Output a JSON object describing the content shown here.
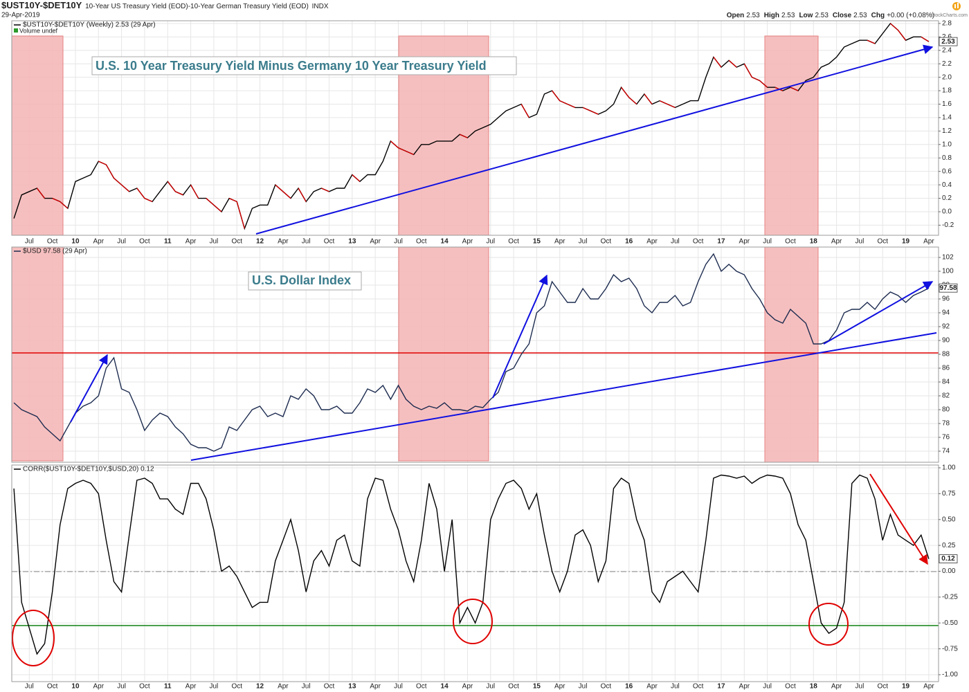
{
  "chart_data": [
    {
      "type": "line",
      "title": "$UST10Y-$DET10Y",
      "subtitle": "10-Year US Treasury Yield (EOD)-10-Year German Treasury Yield (EOD)",
      "exchange": "INDX",
      "date": "29-Apr-2019",
      "quote": [
        [
          "Open",
          2.53
        ],
        [
          "High",
          2.53
        ],
        [
          "Low",
          2.53
        ],
        [
          "Close",
          2.53
        ],
        [
          "Chg",
          "+0.00 (+0.08%)"
        ]
      ],
      "brand": "StockCharts.com",
      "annotation": "U.S. 10 Year Treasury Yield Minus Germany 10 Year Treasury Yield",
      "volume_note": "Volume undef",
      "xlim": [
        "2009-04",
        "2019-05"
      ],
      "xticks": [
        {
          "value": "2009-07",
          "label": "Jul"
        },
        {
          "value": "2009-10",
          "label": "Oct"
        },
        {
          "value": "2010-01",
          "label": "10"
        },
        {
          "value": "2010-04",
          "label": "Apr"
        },
        {
          "value": "2010-07",
          "label": "Jul"
        },
        {
          "value": "2010-10",
          "label": "Oct"
        },
        {
          "value": "2011-01",
          "label": "11"
        },
        {
          "value": "2011-04",
          "label": "Apr"
        },
        {
          "value": "2011-07",
          "label": "Jul"
        },
        {
          "value": "2011-10",
          "label": "Oct"
        },
        {
          "value": "2012-01",
          "label": "12"
        },
        {
          "value": "2012-04",
          "label": "Apr"
        },
        {
          "value": "2012-07",
          "label": "Jul"
        },
        {
          "value": "2012-10",
          "label": "Oct"
        },
        {
          "value": "2013-01",
          "label": "13"
        },
        {
          "value": "2013-04",
          "label": "Apr"
        },
        {
          "value": "2013-07",
          "label": "Jul"
        },
        {
          "value": "2013-10",
          "label": "Oct"
        },
        {
          "value": "2014-01",
          "label": "14"
        },
        {
          "value": "2014-04",
          "label": "Apr"
        },
        {
          "value": "2014-07",
          "label": "Jul"
        },
        {
          "value": "2014-10",
          "label": "Oct"
        },
        {
          "value": "2015-01",
          "label": "15"
        },
        {
          "value": "2015-04",
          "label": "Apr"
        },
        {
          "value": "2015-07",
          "label": "Jul"
        },
        {
          "value": "2015-10",
          "label": "Oct"
        },
        {
          "value": "2016-01",
          "label": "16"
        },
        {
          "value": "2016-04",
          "label": "Apr"
        },
        {
          "value": "2016-07",
          "label": "Jul"
        },
        {
          "value": "2016-10",
          "label": "Oct"
        },
        {
          "value": "2017-01",
          "label": "17"
        },
        {
          "value": "2017-04",
          "label": "Apr"
        },
        {
          "value": "2017-07",
          "label": "Jul"
        },
        {
          "value": "2017-10",
          "label": "Oct"
        },
        {
          "value": "2018-01",
          "label": "18"
        },
        {
          "value": "2018-04",
          "label": "Apr"
        },
        {
          "value": "2018-07",
          "label": "Jul"
        },
        {
          "value": "2018-10",
          "label": "Oct"
        },
        {
          "value": "2019-01",
          "label": "19"
        },
        {
          "value": "2019-04",
          "label": "Apr"
        }
      ],
      "x": [
        "2009-05",
        "2009-06",
        "2009-07",
        "2009-08",
        "2009-09",
        "2009-10",
        "2009-11",
        "2009-12",
        "2010-01",
        "2010-02",
        "2010-03",
        "2010-04",
        "2010-05",
        "2010-06",
        "2010-07",
        "2010-08",
        "2010-09",
        "2010-10",
        "2010-11",
        "2010-12",
        "2011-01",
        "2011-02",
        "2011-03",
        "2011-04",
        "2011-05",
        "2011-06",
        "2011-07",
        "2011-08",
        "2011-09",
        "2011-10",
        "2011-11",
        "2011-12",
        "2012-01",
        "2012-02",
        "2012-03",
        "2012-04",
        "2012-05",
        "2012-06",
        "2012-07",
        "2012-08",
        "2012-09",
        "2012-10",
        "2012-11",
        "2012-12",
        "2013-01",
        "2013-02",
        "2013-03",
        "2013-04",
        "2013-05",
        "2013-06",
        "2013-07",
        "2013-08",
        "2013-09",
        "2013-10",
        "2013-11",
        "2013-12",
        "2014-01",
        "2014-02",
        "2014-03",
        "2014-04",
        "2014-05",
        "2014-06",
        "2014-07",
        "2014-08",
        "2014-09",
        "2014-10",
        "2014-11",
        "2014-12",
        "2015-01",
        "2015-02",
        "2015-03",
        "2015-04",
        "2015-05",
        "2015-06",
        "2015-07",
        "2015-08",
        "2015-09",
        "2015-10",
        "2015-11",
        "2015-12",
        "2016-01",
        "2016-02",
        "2016-03",
        "2016-04",
        "2016-05",
        "2016-06",
        "2016-07",
        "2016-08",
        "2016-09",
        "2016-10",
        "2016-11",
        "2016-12",
        "2017-01",
        "2017-02",
        "2017-03",
        "2017-04",
        "2017-05",
        "2017-06",
        "2017-07",
        "2017-08",
        "2017-09",
        "2017-10",
        "2017-11",
        "2017-12",
        "2018-01",
        "2018-02",
        "2018-03",
        "2018-04",
        "2018-05",
        "2018-06",
        "2018-07",
        "2018-08",
        "2018-09",
        "2018-10",
        "2018-11",
        "2018-12",
        "2019-01",
        "2019-02",
        "2019-03",
        "2019-04"
      ],
      "ylim": [
        -0.35,
        2.84
      ],
      "yticks": [
        -0.2,
        {
          "value": 0,
          "label": "0.0"
        },
        0.2,
        0.4,
        0.6,
        0.8,
        {
          "value": 1,
          "label": "1.0"
        },
        1.2,
        1.4,
        1.6,
        1.8,
        {
          "value": 2,
          "label": "2.0"
        },
        2.2,
        2.4,
        2.6,
        2.8
      ],
      "grid": true,
      "series": [
        {
          "name": "$UST10Y-$DET10Y (Weekly) 2.53 (29 Apr)",
          "color": "#000000",
          "down_color": "#d00000",
          "values": [
            -0.1,
            0.25,
            0.3,
            0.35,
            0.2,
            0.2,
            0.15,
            0.05,
            0.45,
            0.5,
            0.55,
            0.75,
            0.7,
            0.5,
            0.4,
            0.3,
            0.35,
            0.2,
            0.15,
            0.3,
            0.45,
            0.3,
            0.25,
            0.4,
            0.2,
            0.2,
            0.1,
            0,
            0.2,
            0.15,
            -0.25,
            0.05,
            0.1,
            0.1,
            0.4,
            0.3,
            0.2,
            0.35,
            0.15,
            0.3,
            0.35,
            0.3,
            0.35,
            0.35,
            0.55,
            0.45,
            0.55,
            0.55,
            0.75,
            1.05,
            0.95,
            0.9,
            0.85,
            1,
            1,
            1.05,
            1.05,
            1.05,
            1.15,
            1.1,
            1.2,
            1.25,
            1.3,
            1.4,
            1.5,
            1.55,
            1.6,
            1.4,
            1.45,
            1.75,
            1.8,
            1.65,
            1.6,
            1.55,
            1.55,
            1.5,
            1.45,
            1.5,
            1.6,
            1.85,
            1.7,
            1.6,
            1.75,
            1.6,
            1.65,
            1.6,
            1.55,
            1.6,
            1.65,
            1.65,
            2,
            2.3,
            2.15,
            2.25,
            2.15,
            2.2,
            2,
            1.95,
            1.85,
            1.85,
            1.8,
            1.85,
            1.8,
            1.95,
            2,
            2.15,
            2.2,
            2.3,
            2.45,
            2.5,
            2.55,
            2.55,
            2.5,
            2.65,
            2.8,
            2.7,
            2.55,
            2.6,
            2.6,
            2.53
          ]
        }
      ]
    },
    {
      "type": "line",
      "annotation": "U.S. Dollar Index",
      "ylim": [
        72.4,
        103.5
      ],
      "yticks": [
        74,
        76,
        78,
        80,
        82,
        84,
        86,
        88,
        90,
        92,
        94,
        96,
        98,
        100,
        102
      ],
      "grid": true,
      "series": [
        {
          "name": "$USD 97.58 (29 Apr)",
          "color": "#1c2b4f",
          "values": [
            81,
            80,
            79.5,
            79,
            77.5,
            76.5,
            75.5,
            77.5,
            79.5,
            80.5,
            81,
            82,
            86,
            87.5,
            83,
            82.5,
            80,
            77,
            78.5,
            79.5,
            79,
            77.5,
            76.5,
            75,
            74.5,
            74.5,
            74,
            74.5,
            77.5,
            77,
            78.5,
            80,
            80.5,
            79,
            79.5,
            79,
            82,
            81.5,
            83,
            82,
            80,
            80,
            80.5,
            79.5,
            79.5,
            81,
            83,
            82.5,
            83.5,
            81.5,
            83.5,
            81.5,
            80.5,
            80,
            80.5,
            80.2,
            81,
            80,
            80,
            79.8,
            80.5,
            80.3,
            81.5,
            82.5,
            85.5,
            86,
            88,
            89.5,
            94,
            95,
            98.5,
            97,
            95.5,
            95.5,
            97.5,
            96,
            96,
            97.5,
            99.5,
            98.5,
            99,
            97.5,
            95,
            94,
            95.5,
            95.5,
            96.5,
            95,
            95.5,
            98.5,
            101,
            102.5,
            100,
            101,
            100,
            99.5,
            97.5,
            96,
            94,
            93,
            92.5,
            94.5,
            93.5,
            92.5,
            89.5,
            89.5,
            90,
            91.5,
            94,
            94.5,
            94.5,
            95.5,
            94.5,
            96,
            97,
            96.5,
            95.5,
            96.5,
            97,
            97.58
          ]
        }
      ]
    },
    {
      "type": "line",
      "ylim": [
        -1.067,
        1.027
      ],
      "yticks": [
        {
          "value": -1,
          "label": "-1.00"
        },
        {
          "value": -0.75,
          "label": "-0.75"
        },
        {
          "value": -0.5,
          "label": "-0.50"
        },
        {
          "value": -0.25,
          "label": "-0.25"
        },
        {
          "value": 0,
          "label": "0.00"
        },
        {
          "value": 0.25,
          "label": "0.25"
        },
        {
          "value": 0.5,
          "label": "0.50"
        },
        {
          "value": 0.75,
          "label": "0.75"
        },
        {
          "value": 1,
          "label": "1.00"
        }
      ],
      "grid": true,
      "series": [
        {
          "name": "CORR($UST10Y-$DET10Y,$USD,20) 0.12",
          "color": "#000000",
          "values": [
            0.8,
            -0.3,
            -0.55,
            -0.8,
            -0.7,
            -0.2,
            0.45,
            0.8,
            0.85,
            0.88,
            0.85,
            0.75,
            0.3,
            -0.1,
            -0.2,
            0.35,
            0.88,
            0.9,
            0.85,
            0.7,
            0.7,
            0.6,
            0.55,
            0.85,
            0.85,
            0.7,
            0.4,
            0,
            0.05,
            -0.05,
            -0.2,
            -0.35,
            -0.3,
            -0.3,
            0.1,
            0.3,
            0.5,
            0.2,
            -0.2,
            0.1,
            0.2,
            0.05,
            0.3,
            0.35,
            0.1,
            0.05,
            0.7,
            0.9,
            0.88,
            0.6,
            0.4,
            0.1,
            -0.1,
            0.3,
            0.85,
            0.6,
            0,
            0.5,
            -0.5,
            -0.35,
            -0.5,
            -0.3,
            0.5,
            0.7,
            0.85,
            0.88,
            0.8,
            0.6,
            0.75,
            0.35,
            0,
            -0.2,
            0,
            0.35,
            0.4,
            0.25,
            -0.1,
            0.1,
            0.8,
            0.9,
            0.85,
            0.5,
            0.3,
            -0.2,
            -0.3,
            -0.1,
            -0.05,
            0,
            -0.1,
            -0.2,
            0.3,
            0.9,
            0.93,
            0.92,
            0.9,
            0.92,
            0.85,
            0.9,
            0.93,
            0.92,
            0.9,
            0.75,
            0.45,
            0.3,
            -0.1,
            -0.5,
            -0.6,
            -0.55,
            -0.3,
            0.85,
            0.93,
            0.9,
            0.7,
            0.3,
            0.55,
            0.35,
            0.3,
            0.25,
            0.35,
            0.12
          ]
        }
      ]
    }
  ]
}
